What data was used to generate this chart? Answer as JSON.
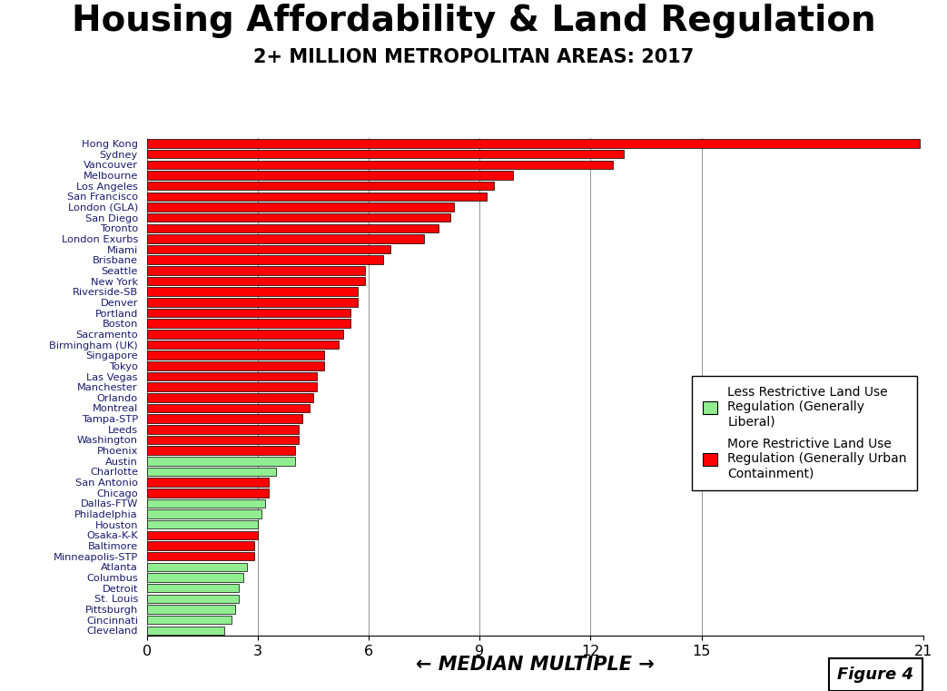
{
  "title": "Housing Affordability & Land Regulation",
  "subtitle": "2+ MILLION METROPOLITAN AREAS: 2017",
  "xlabel": "← MEDIAN MULTIPLE →",
  "figure_label": "Figure 4",
  "xlim": [
    0,
    21
  ],
  "xticks": [
    0,
    3,
    6,
    9,
    12,
    15,
    21
  ],
  "categories": [
    "Hong Kong",
    "Sydney",
    "Vancouver",
    "Melbourne",
    "Los Angeles",
    "San Francisco",
    "London (GLA)",
    "San Diego",
    "Toronto",
    "London Exurbs",
    "Miami",
    "Brisbane",
    "Seattle",
    "New York",
    "Riverside-SB",
    "Denver",
    "Portland",
    "Boston",
    "Sacramento",
    "Birmingham (UK)",
    "Singapore",
    "Tokyo",
    "Las Vegas",
    "Manchester",
    "Orlando",
    "Montreal",
    "Tampa-STP",
    "Leeds",
    "Washington",
    "Phoenix",
    "Austin",
    "Charlotte",
    "San Antonio",
    "Chicago",
    "Dallas-FTW",
    "Philadelphia",
    "Houston",
    "Osaka-K-K",
    "Baltimore",
    "Minneapolis-STP",
    "Atlanta",
    "Columbus",
    "Detroit",
    "St. Louis",
    "Pittsburgh",
    "Cincinnati",
    "Cleveland"
  ],
  "values": [
    20.9,
    12.9,
    12.6,
    9.9,
    9.4,
    9.2,
    8.3,
    8.2,
    7.9,
    7.5,
    6.6,
    6.4,
    5.9,
    5.9,
    5.7,
    5.7,
    5.5,
    5.5,
    5.3,
    5.2,
    4.8,
    4.8,
    4.6,
    4.6,
    4.5,
    4.4,
    4.2,
    4.1,
    4.1,
    4.0,
    4.0,
    3.5,
    3.3,
    3.3,
    3.2,
    3.1,
    3.0,
    3.0,
    2.9,
    2.9,
    2.7,
    2.6,
    2.5,
    2.5,
    2.4,
    2.3,
    2.1
  ],
  "colors": [
    "#ff0000",
    "#ff0000",
    "#ff0000",
    "#ff0000",
    "#ff0000",
    "#ff0000",
    "#ff0000",
    "#ff0000",
    "#ff0000",
    "#ff0000",
    "#ff0000",
    "#ff0000",
    "#ff0000",
    "#ff0000",
    "#ff0000",
    "#ff0000",
    "#ff0000",
    "#ff0000",
    "#ff0000",
    "#ff0000",
    "#ff0000",
    "#ff0000",
    "#ff0000",
    "#ff0000",
    "#ff0000",
    "#ff0000",
    "#ff0000",
    "#ff0000",
    "#ff0000",
    "#ff0000",
    "#90ee90",
    "#90ee90",
    "#ff0000",
    "#ff0000",
    "#90ee90",
    "#90ee90",
    "#90ee90",
    "#ff0000",
    "#ff0000",
    "#ff0000",
    "#90ee90",
    "#90ee90",
    "#90ee90",
    "#90ee90",
    "#90ee90",
    "#90ee90",
    "#90ee90"
  ],
  "legend_green_line1": "Less Restrictive Land Use",
  "legend_green_line2": "Regulation (Generally",
  "legend_green_line3": "Liberal)",
  "legend_red_line1": "More Restrictive Land Use",
  "legend_red_line2": "Regulation (Generally Urban",
  "legend_red_line3": "Containment)",
  "bg_color": "#ffffff",
  "bar_edge_color": "#000000",
  "title_fontsize": 28,
  "subtitle_fontsize": 15,
  "label_fontsize": 8.2,
  "xlabel_fontsize": 15
}
